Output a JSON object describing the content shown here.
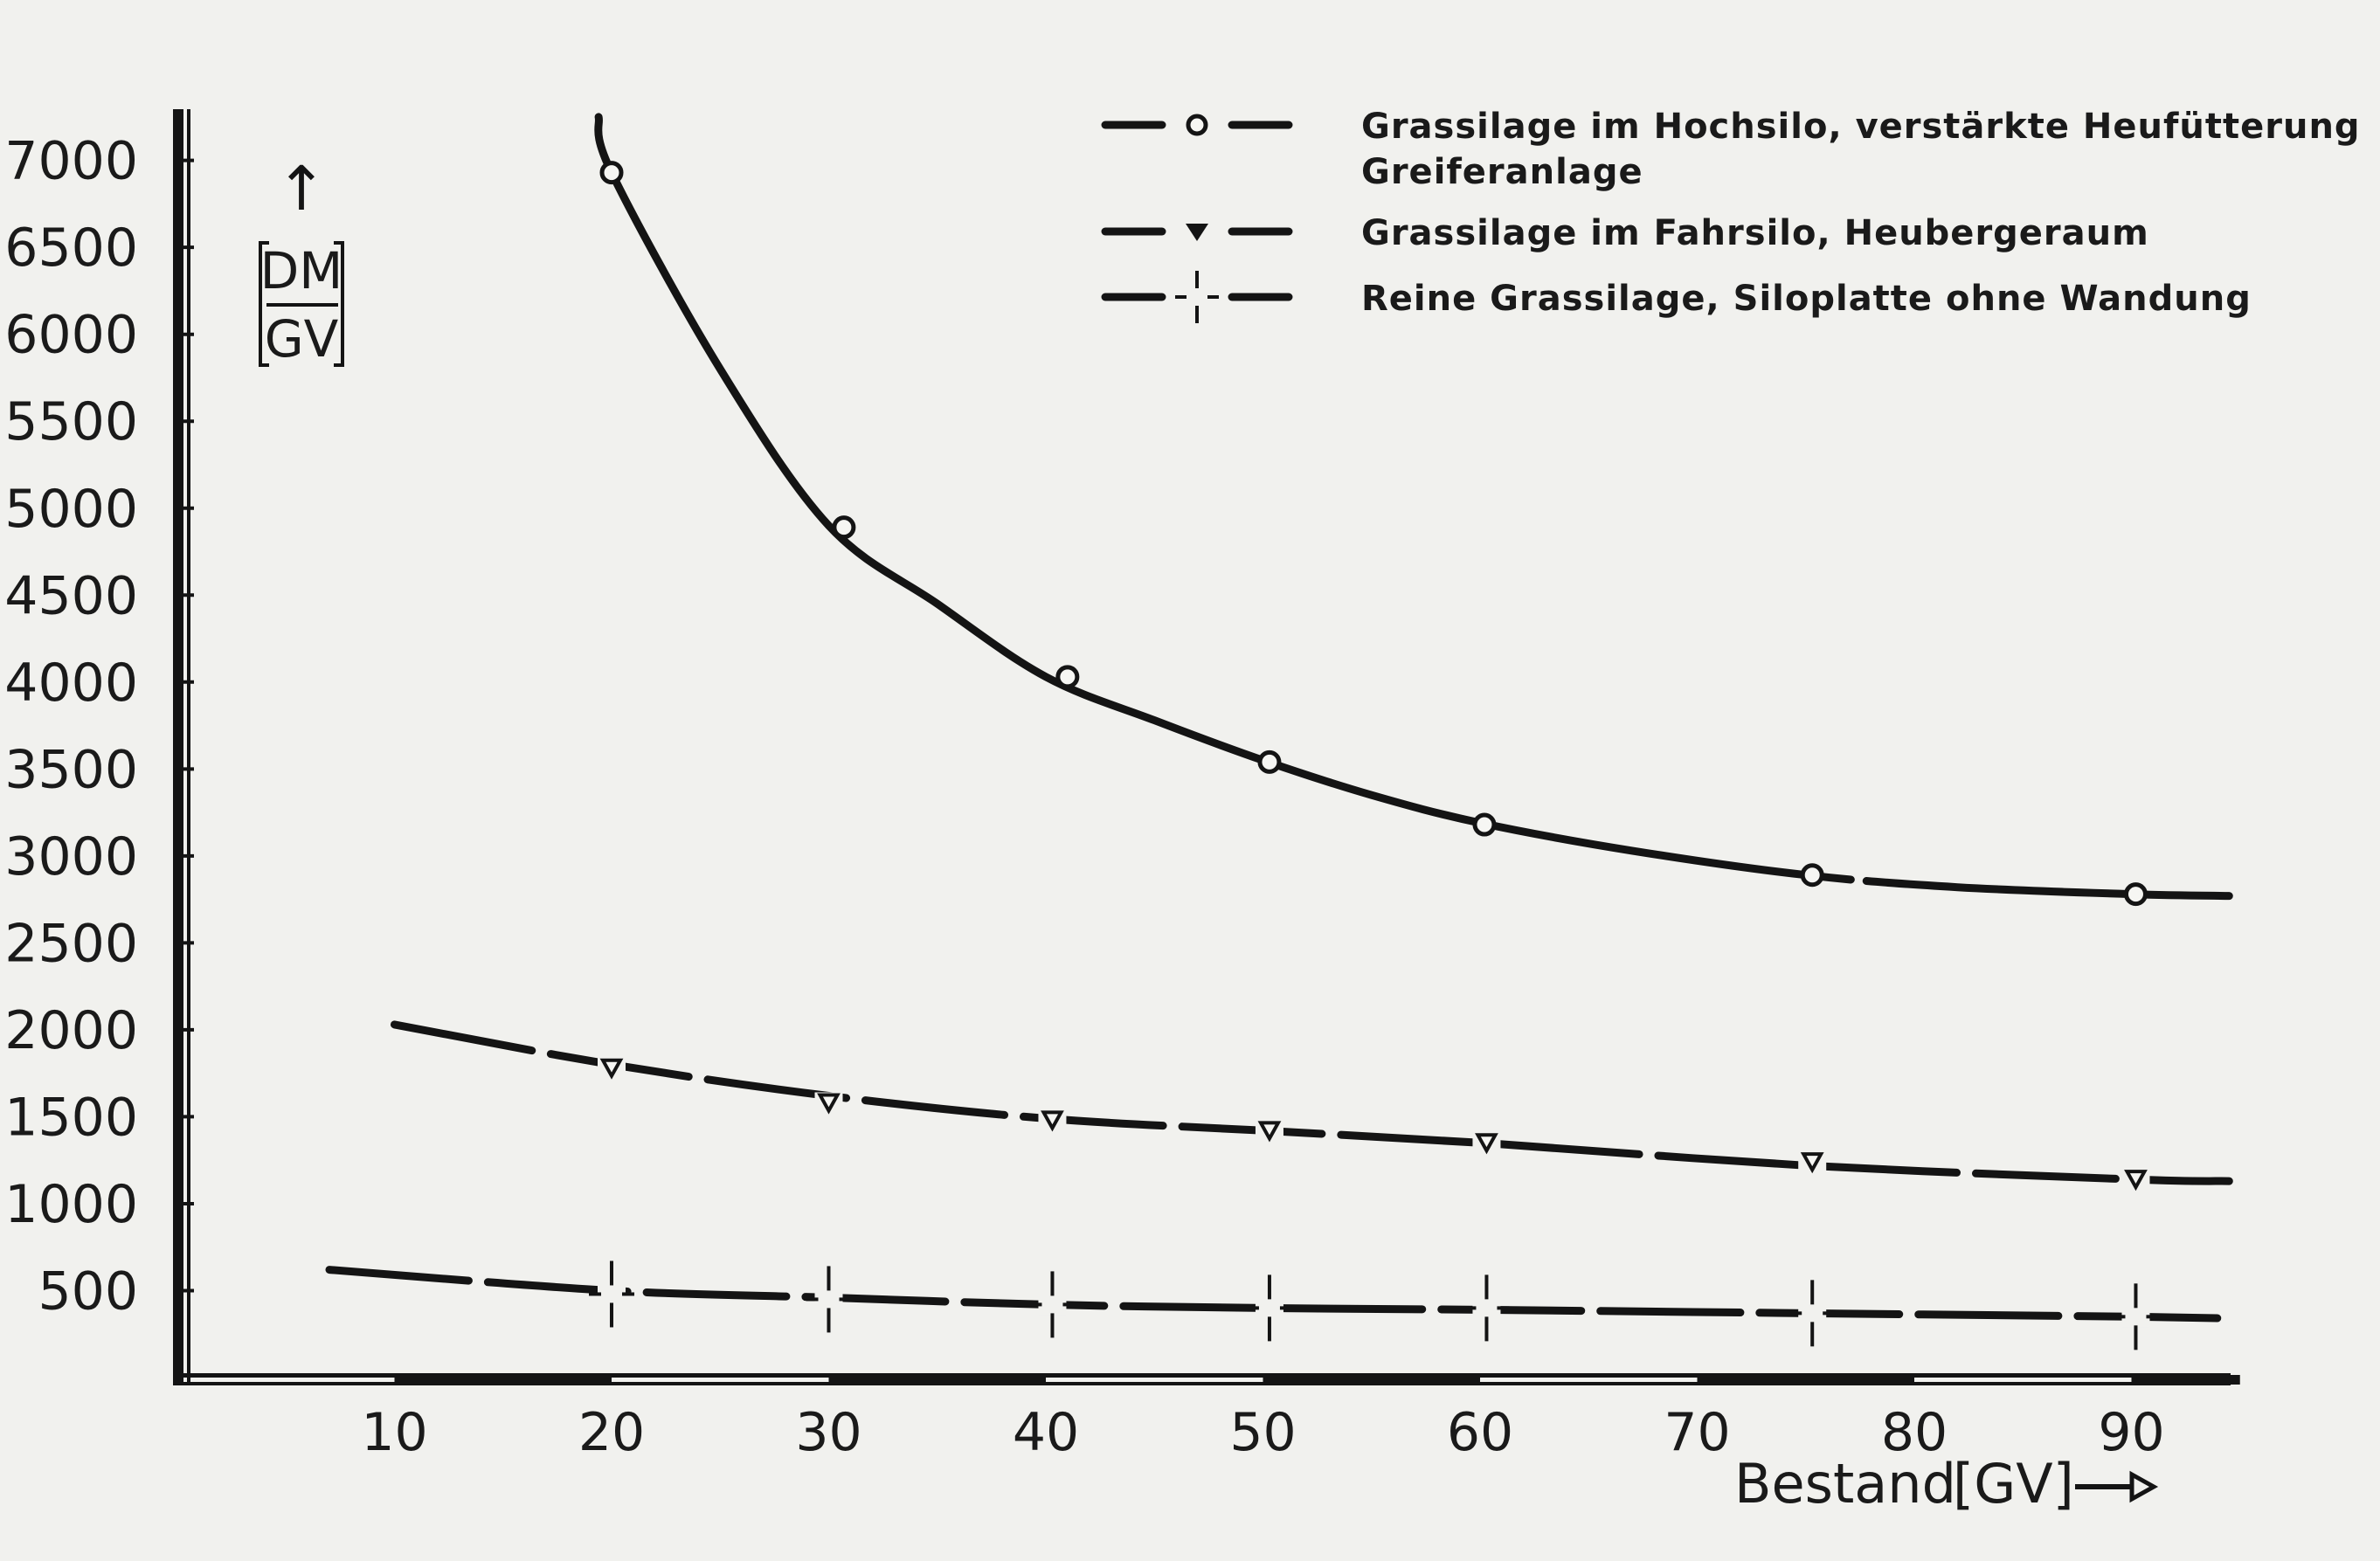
{
  "chart_data": {
    "type": "line",
    "ylabel_top": "DM",
    "ylabel_bottom": "GV",
    "xlabel": "Bestand",
    "xunit": "[GV]",
    "xticks": [
      10,
      20,
      30,
      40,
      50,
      60,
      70,
      80,
      90
    ],
    "yticks": [
      500,
      1000,
      1500,
      2000,
      2500,
      3000,
      3500,
      4000,
      4500,
      5000,
      5500,
      6000,
      6500,
      7000
    ],
    "xlim": [
      0,
      95
    ],
    "ylim": [
      0,
      7300
    ],
    "legend_position": "top-right",
    "series": [
      {
        "legend_lines": [
          "Grassilage im Hochsilo, verstärkte Heufütterung",
          "Greiferanlage"
        ],
        "marker": "circle",
        "x": [
          19.4,
          20,
          25,
          30,
          35,
          40,
          45,
          50,
          55,
          60,
          67,
          75,
          82,
          90,
          94.5
        ],
        "y": [
          7250,
          6930,
          5800,
          4900,
          4450,
          4030,
          3780,
          3550,
          3350,
          3190,
          3030,
          2890,
          2820,
          2780,
          2770
        ],
        "marker_x": [
          20,
          30.7,
          41,
          50.3,
          60.2,
          75.3,
          90.2
        ],
        "marker_y": [
          6930,
          4890,
          4030,
          3540,
          3180,
          2890,
          2780
        ]
      },
      {
        "legend_lines": [
          "Grassilage im Fahrsilo, Heubergeraum"
        ],
        "marker": "triangle",
        "x": [
          10,
          20,
          30,
          40,
          50,
          60,
          75,
          90,
          94.5
        ],
        "y": [
          2030,
          1800,
          1620,
          1490,
          1420,
          1350,
          1220,
          1140,
          1130
        ],
        "marker_x": [
          20,
          30,
          40.3,
          50.3,
          60.3,
          75.3,
          90.2
        ],
        "marker_y": [
          1780,
          1580,
          1480,
          1420,
          1350,
          1240,
          1140
        ],
        "marker_filled_in_legend": true
      },
      {
        "legend_lines": [
          "Reine Grassilage, Siloplatte ohne Wandung"
        ],
        "marker": "cross",
        "x": [
          7,
          20,
          30,
          40,
          50,
          60,
          75,
          90,
          94.5
        ],
        "y": [
          620,
          500,
          460,
          420,
          400,
          390,
          370,
          350,
          340
        ],
        "marker_x": [
          20,
          30,
          40.3,
          50.3,
          60.3,
          75.3,
          90.2
        ],
        "marker_y": [
          480,
          450,
          420,
          400,
          400,
          370,
          350
        ]
      }
    ]
  }
}
